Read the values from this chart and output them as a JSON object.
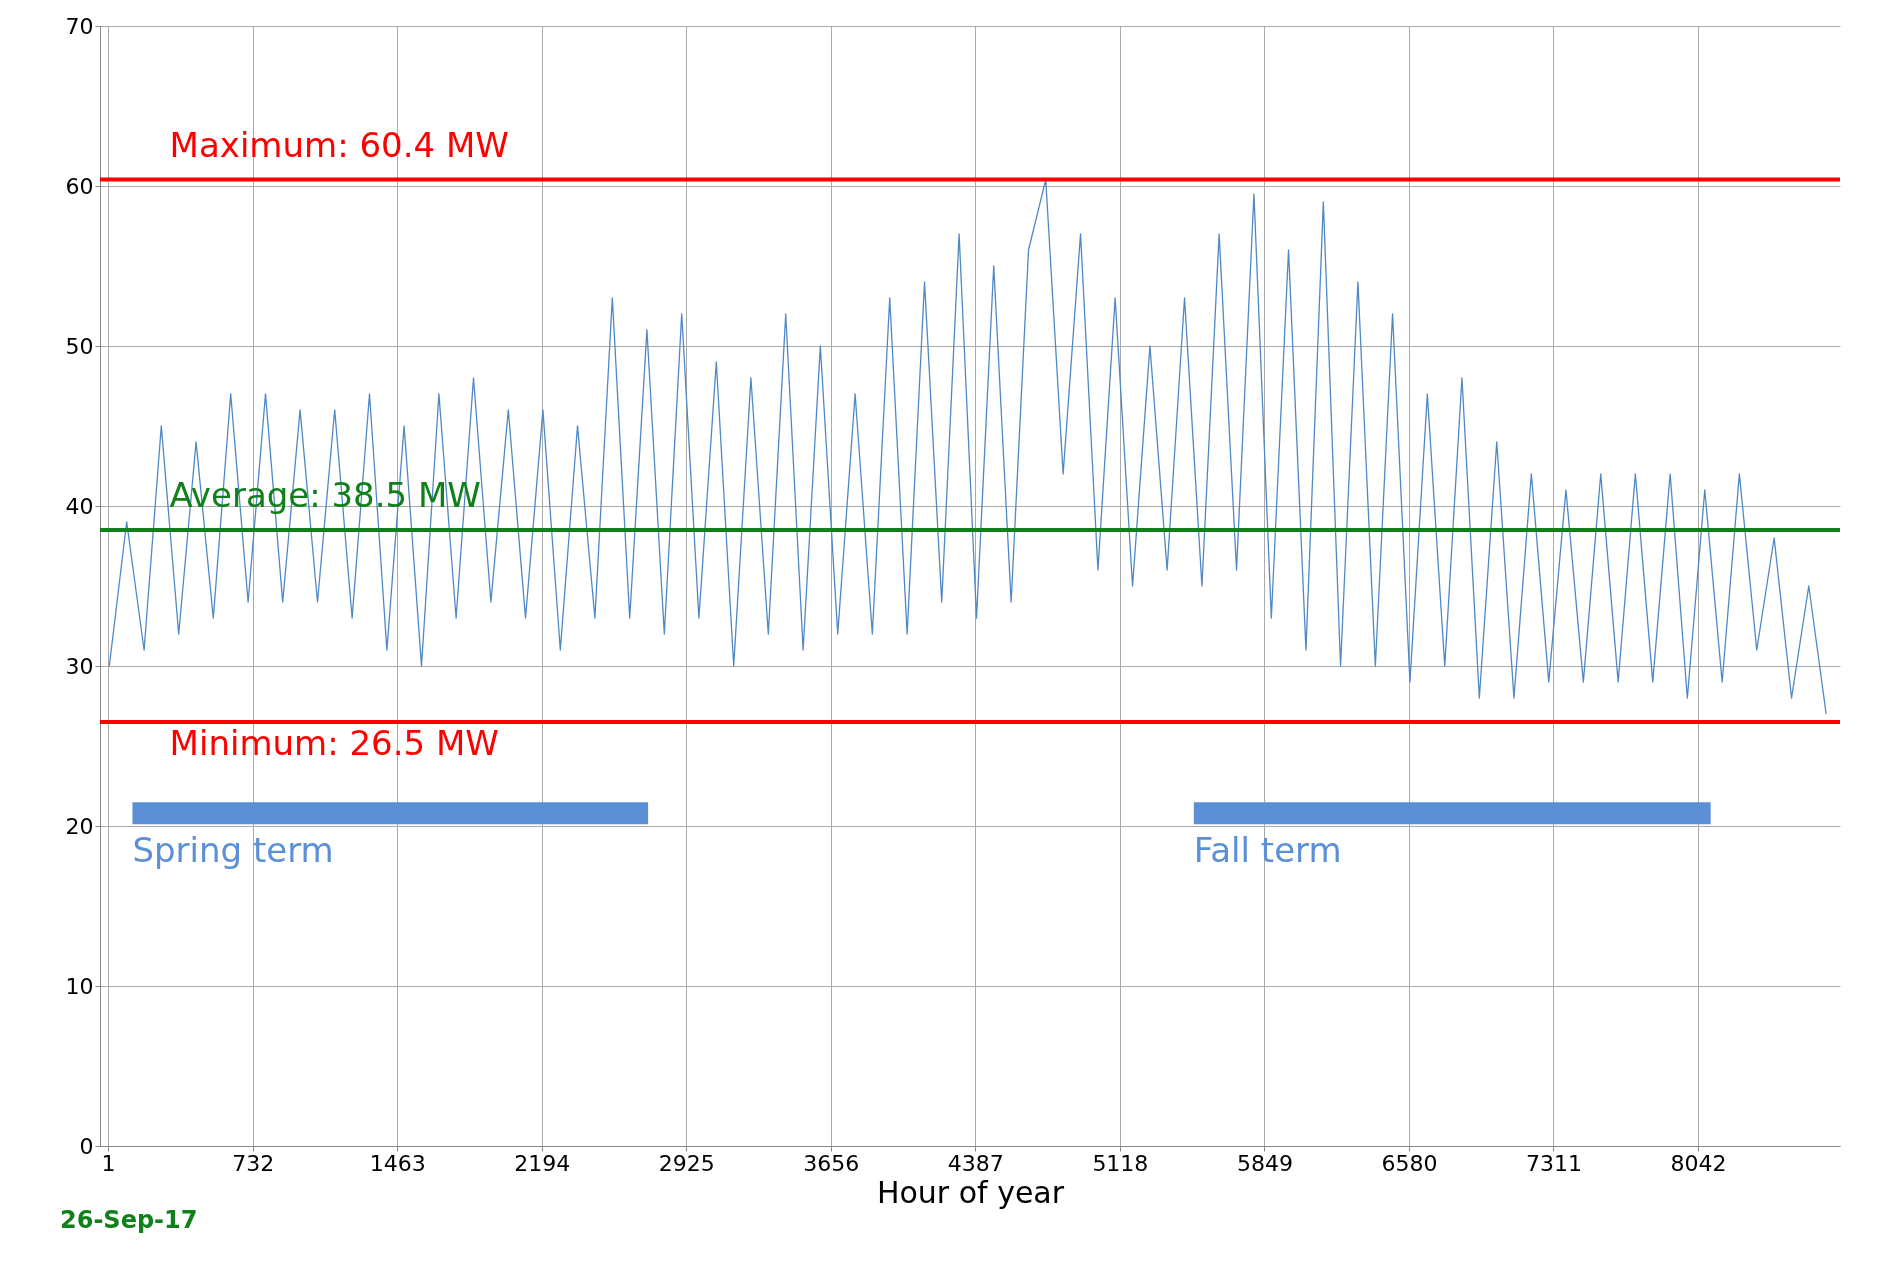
{
  "chart_data": {
    "type": "line",
    "xlabel": "Hour of year",
    "xlim": [
      -40,
      8760
    ],
    "xticks": [
      1,
      732,
      1463,
      2194,
      2925,
      3656,
      4387,
      5118,
      5849,
      6580,
      7311,
      8042
    ],
    "ylim": [
      0,
      70
    ],
    "yticks": [
      0,
      10,
      20,
      30,
      40,
      50,
      60,
      70
    ],
    "grid": true,
    "series": [
      {
        "color": "#4f88c6",
        "x": [
          7,
          95,
          183,
          270,
          358,
          446,
          533,
          621,
          709,
          797,
          884,
          972,
          1060,
          1147,
          1235,
          1323,
          1411,
          1498,
          1586,
          1674,
          1761,
          1849,
          1937,
          2025,
          2112,
          2200,
          2288,
          2375,
          2463,
          2551,
          2639,
          2726,
          2814,
          2902,
          2989,
          3077,
          3165,
          3252,
          3340,
          3428,
          3516,
          3603,
          3691,
          3779,
          3866,
          3954,
          4042,
          4130,
          4217,
          4305,
          4393,
          4480,
          4568,
          4656,
          4743,
          4831,
          4919,
          5007,
          5094,
          5182,
          5270,
          5357,
          5445,
          5533,
          5620,
          5708,
          5796,
          5884,
          5971,
          6059,
          6147,
          6234,
          6322,
          6410,
          6497,
          6585,
          6673,
          6761,
          6848,
          6936,
          7024,
          7111,
          7199,
          7287,
          7374,
          7462,
          7550,
          7638,
          7725,
          7813,
          7901,
          7988,
          8076,
          8164,
          8251,
          8339,
          8427,
          8515,
          8602,
          8690
        ],
        "values": [
          30,
          39,
          31,
          45,
          32,
          44,
          33,
          47,
          34,
          47,
          34,
          46,
          34,
          46,
          33,
          47,
          31,
          45,
          30,
          47,
          33,
          48,
          34,
          46,
          33,
          46,
          31,
          45,
          33,
          53,
          33,
          51,
          32,
          52,
          33,
          49,
          30,
          48,
          32,
          52,
          31,
          50,
          32,
          47,
          32,
          53,
          32,
          54,
          34,
          57,
          33,
          55,
          34,
          56,
          60.4,
          42,
          57,
          36,
          53,
          35,
          50,
          36,
          53,
          35,
          57,
          36,
          59.5,
          33,
          56,
          31,
          59,
          30,
          54,
          30,
          52,
          29,
          47,
          30,
          48,
          28,
          44,
          28,
          42,
          29,
          41,
          29,
          42,
          29,
          42,
          29,
          42,
          28,
          41,
          29,
          42,
          31,
          38,
          28,
          35,
          27
        ]
      },
      {
        "name": "Spring term",
        "color": "#5b8fd6",
        "x": [
          124,
          2732
        ],
        "values": [
          20.8,
          20.8
        ]
      },
      {
        "name": "Fall term",
        "color": "#5b8fd6",
        "x": [
          5492,
          8106
        ],
        "values": [
          20.8,
          20.8
        ]
      }
    ],
    "ref_lines": [
      {
        "axis": "y",
        "value": 60.4,
        "label": "Maximum: 60.4 MW",
        "color": "#ff0000"
      },
      {
        "axis": "y",
        "value": 38.5,
        "label": "Average: 38.5 MW",
        "color": "#11801a"
      },
      {
        "axis": "y",
        "value": 26.5,
        "label": "Minimum: 26.5 MW",
        "color": "#ff0000"
      }
    ],
    "annotations": [
      "26-Sep-17"
    ]
  }
}
